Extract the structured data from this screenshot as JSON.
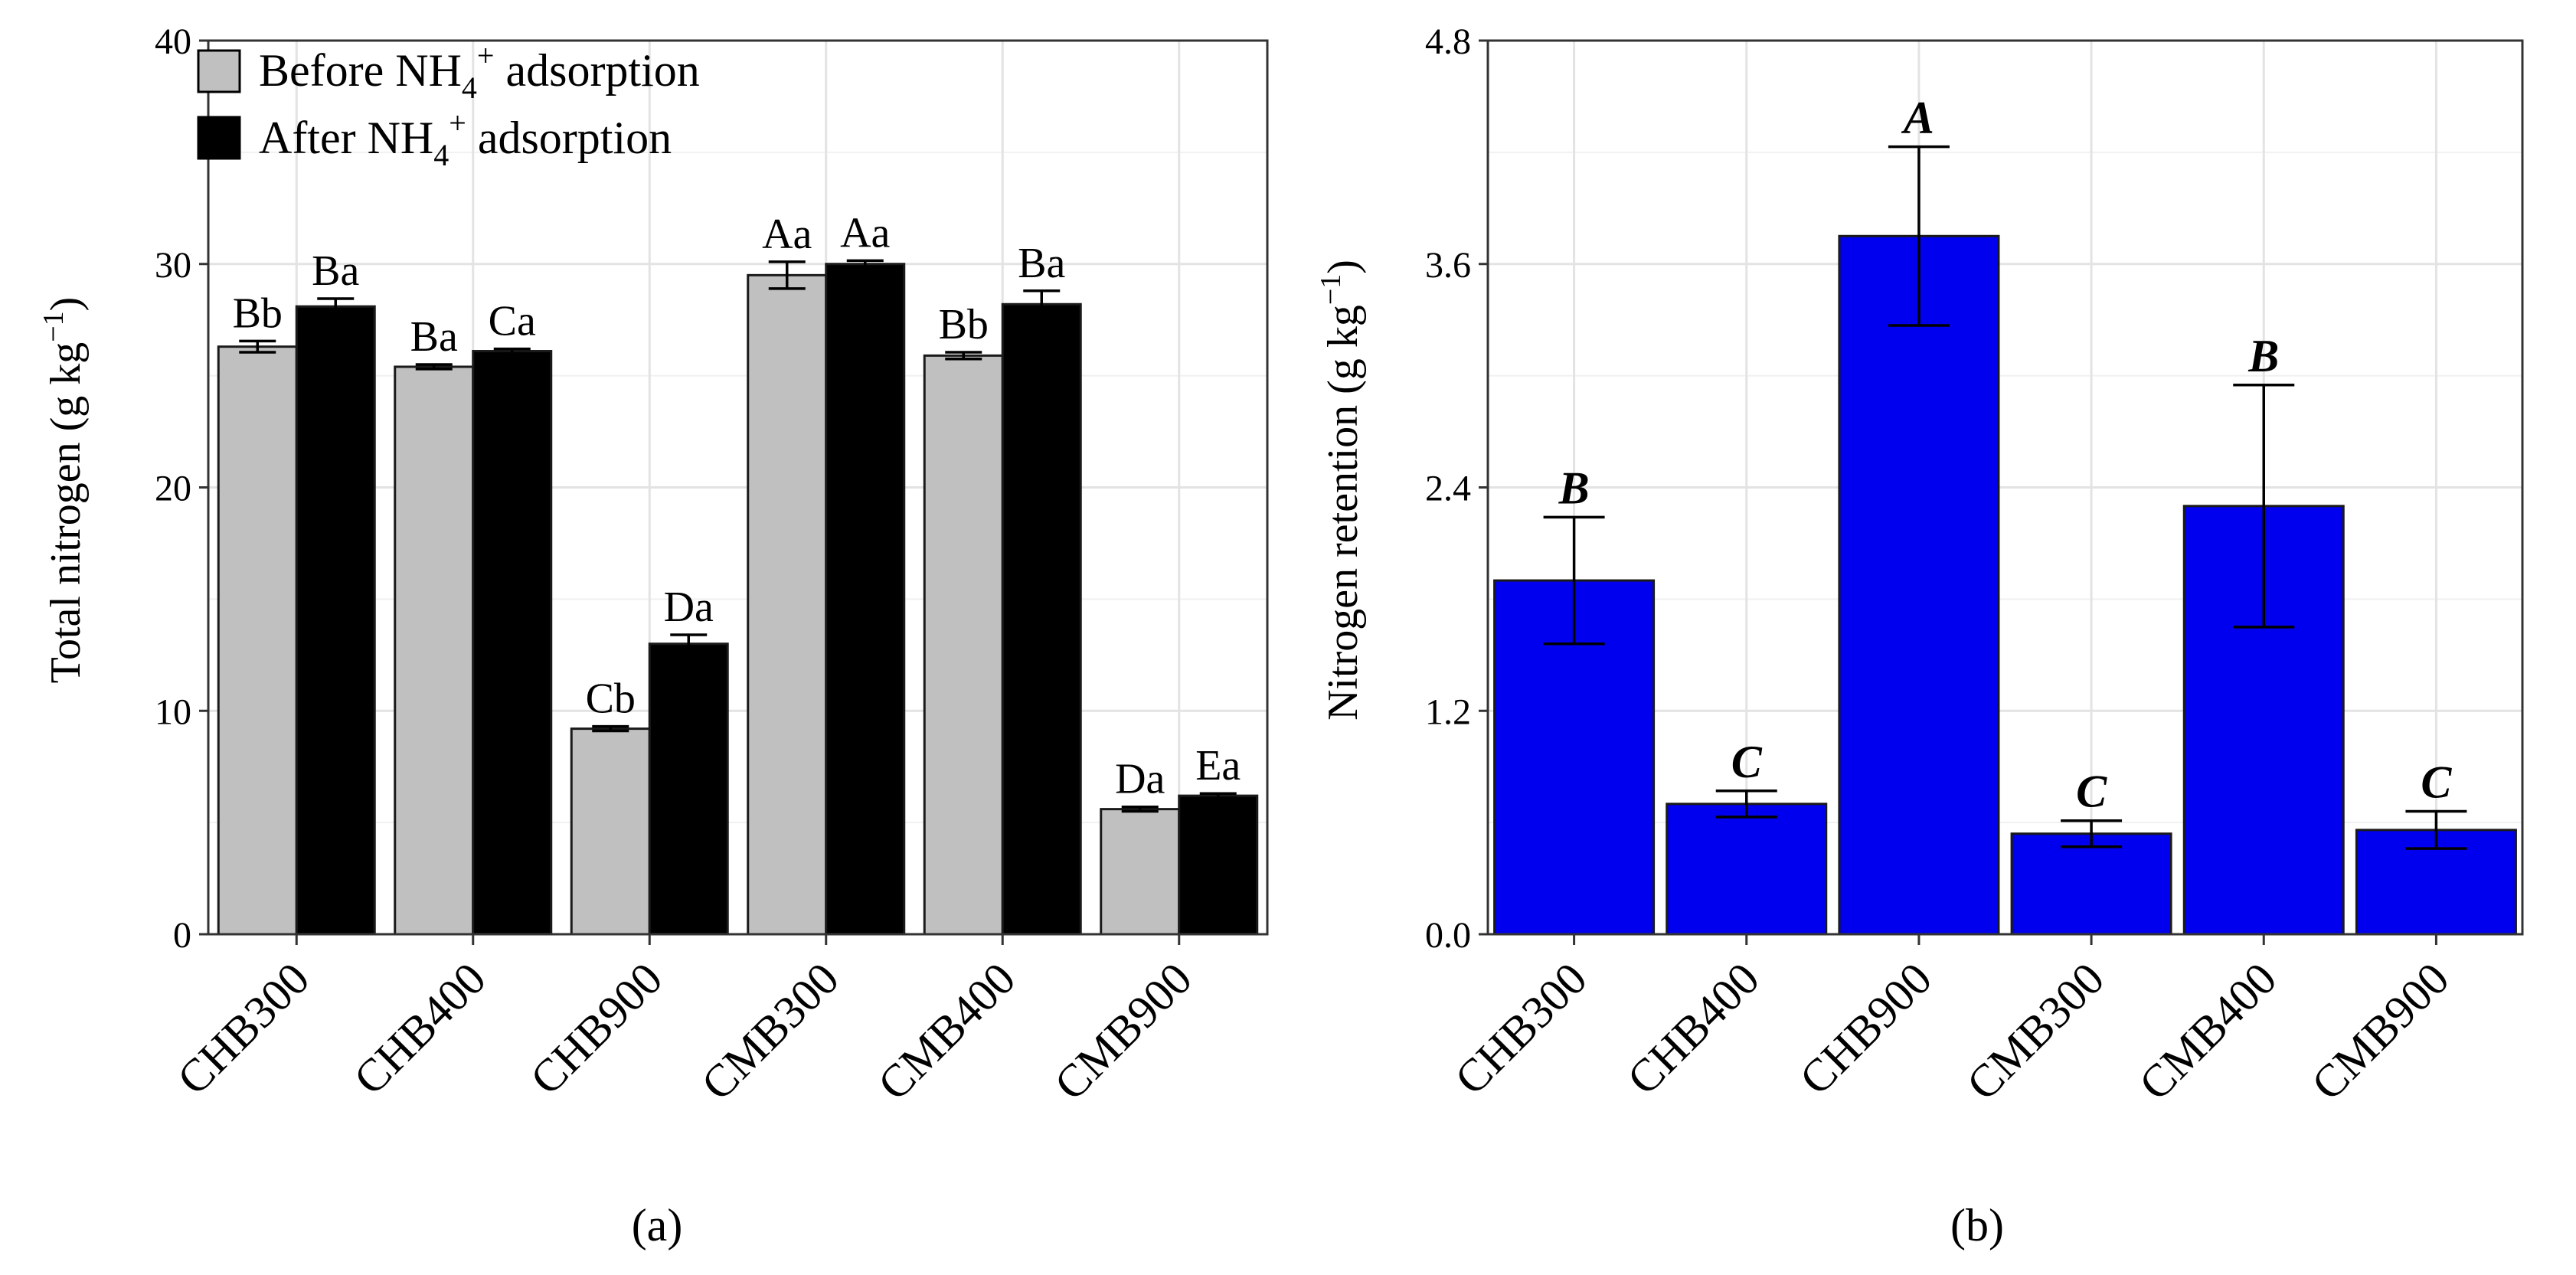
{
  "chart_data": [
    {
      "type": "bar",
      "panel_label": "(a)",
      "ylabel": "Total nitrogen (g kg⁻¹)",
      "ylabel_main": "Total nitrogen (g kg",
      "ylabel_sup": "−1",
      "ylabel_close": ")",
      "xlabel": "",
      "ylim": [
        0,
        40
      ],
      "yticks": [
        0,
        10,
        20,
        30,
        40
      ],
      "grid": true,
      "legend_position": "top-left",
      "categories": [
        "CHB300",
        "CHB400",
        "CHB900",
        "CMB300",
        "CMB400",
        "CMB900"
      ],
      "series": [
        {
          "name": "Before NH₄⁺ adsorption",
          "legend_prefix": "Before NH",
          "legend_sub": "4",
          "legend_sup": "+",
          "legend_suffix": " adsorption",
          "color": "#c0c0c0",
          "values": [
            26.3,
            25.4,
            9.2,
            29.5,
            25.9,
            5.6
          ],
          "errors": [
            0.25,
            0.1,
            0.1,
            0.6,
            0.15,
            0.1
          ],
          "labels": [
            "Bb",
            "Ba",
            "Cb",
            "Aa",
            "Bb",
            "Da"
          ]
        },
        {
          "name": "After NH₄⁺ adsorption",
          "legend_prefix": "After NH",
          "legend_sub": "4",
          "legend_sup": "+",
          "legend_suffix": " adsorption",
          "color": "#000000",
          "values": [
            28.1,
            26.1,
            13.0,
            30.0,
            28.2,
            6.2
          ],
          "errors": [
            0.35,
            0.1,
            0.4,
            0.15,
            0.6,
            0.1
          ],
          "labels": [
            "Ba",
            "Ca",
            "Da",
            "Aa",
            "Ba",
            "Ea"
          ]
        }
      ]
    },
    {
      "type": "bar",
      "panel_label": "(b)",
      "ylabel": "Nitrogen retention (g kg⁻¹)",
      "ylabel_main": "Nitrogen retention (g kg",
      "ylabel_sup": "−1",
      "ylabel_close": ")",
      "xlabel": "",
      "ylim": [
        0,
        4.8
      ],
      "yticks": [
        0.0,
        1.2,
        2.4,
        3.6,
        4.8
      ],
      "ytick_labels": [
        "0.0",
        "1.2",
        "2.4",
        "3.6",
        "4.8"
      ],
      "grid": true,
      "categories": [
        "CHB300",
        "CHB400",
        "CHB900",
        "CMB300",
        "CMB400",
        "CMB900"
      ],
      "series": [
        {
          "name": "Nitrogen retention",
          "color": "#0000ee",
          "values": [
            1.9,
            0.7,
            3.75,
            0.54,
            2.3,
            0.56
          ],
          "errors": [
            0.34,
            0.07,
            0.48,
            0.07,
            0.65,
            0.1
          ],
          "labels": [
            "B",
            "C",
            "A",
            "C",
            "B",
            "C"
          ]
        }
      ]
    }
  ]
}
